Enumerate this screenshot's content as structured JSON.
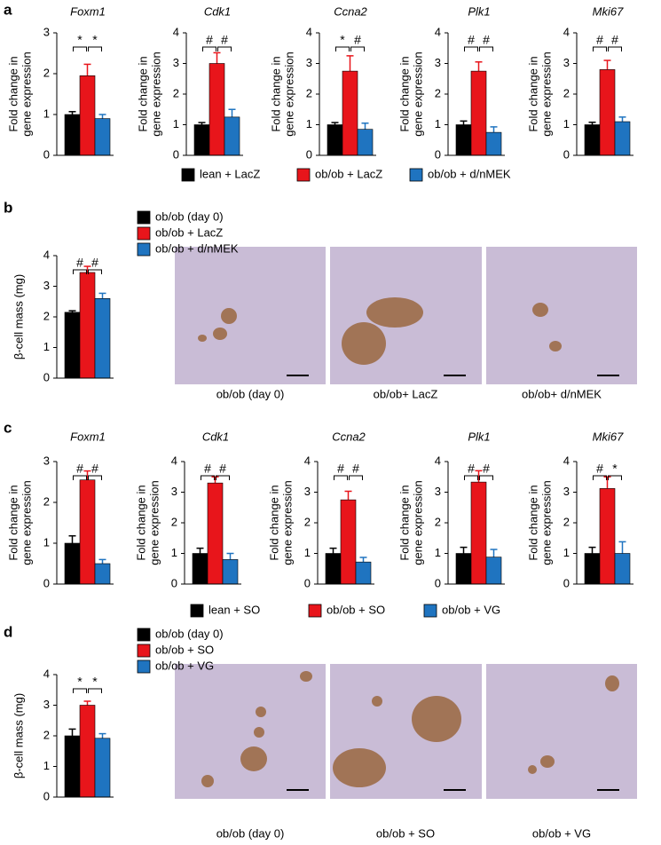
{
  "panel_labels": [
    "a",
    "b",
    "c",
    "d"
  ],
  "legends": [
    {
      "labels": [
        "lean + LacZ",
        "ob/ob + LacZ",
        "ob/ob + d/nMEK"
      ],
      "colors": [
        "#000000",
        "#e8151b",
        "#1f74c0"
      ]
    },
    {
      "labels": [
        "ob/ob (day 0)",
        "ob/ob + LacZ",
        "ob/ob + d/nMEK"
      ],
      "colors": [
        "#000000",
        "#e8151b",
        "#1f74c0"
      ]
    },
    {
      "labels": [
        "lean + SO",
        "ob/ob + SO",
        "ob/ob + VG"
      ],
      "colors": [
        "#000000",
        "#e8151b",
        "#1f74c0"
      ]
    },
    {
      "labels": [
        "ob/ob (day 0)",
        "ob/ob + SO",
        "ob/ob + VG"
      ],
      "colors": [
        "#000000",
        "#e8151b",
        "#1f74c0"
      ]
    }
  ],
  "image_captions": [
    [
      "ob/ob (day 0)",
      "ob/ob+ LacZ",
      "ob/ob+ d/nMEK"
    ],
    [
      "ob/ob (day 0)",
      "ob/ob + SO",
      "ob/ob + VG"
    ]
  ],
  "chart_data": [
    {
      "type": "bar",
      "title": "Foxm1",
      "ylabel": [
        "Fold change in",
        "gene expression"
      ],
      "values": [
        1.0,
        1.95,
        0.9
      ],
      "errors": [
        0.07,
        0.28,
        0.1
      ],
      "colors": [
        "#000000",
        "#e8151b",
        "#1f74c0"
      ],
      "significance": [
        "*",
        "*"
      ],
      "ylim": [
        0,
        3
      ],
      "yticks": [
        0,
        1,
        2,
        3
      ]
    },
    {
      "type": "bar",
      "title": "Cdk1",
      "ylabel": [
        "Fold change in",
        "gene expression"
      ],
      "values": [
        1.0,
        3.0,
        1.25
      ],
      "errors": [
        0.07,
        0.35,
        0.25
      ],
      "colors": [
        "#000000",
        "#e8151b",
        "#1f74c0"
      ],
      "significance": [
        "#",
        "#"
      ],
      "ylim": [
        0,
        4
      ],
      "yticks": [
        0,
        1,
        2,
        3,
        4
      ]
    },
    {
      "type": "bar",
      "title": "Ccna2",
      "ylabel": [
        "Fold change in",
        "gene expression"
      ],
      "values": [
        1.0,
        2.75,
        0.85
      ],
      "errors": [
        0.07,
        0.5,
        0.2
      ],
      "colors": [
        "#000000",
        "#e8151b",
        "#1f74c0"
      ],
      "significance": [
        "*",
        "#"
      ],
      "ylim": [
        0,
        4
      ],
      "yticks": [
        0,
        1,
        2,
        3,
        4
      ]
    },
    {
      "type": "bar",
      "title": "Plk1",
      "ylabel": [
        "Fold change in",
        "gene expression"
      ],
      "values": [
        1.0,
        2.75,
        0.75
      ],
      "errors": [
        0.12,
        0.3,
        0.18
      ],
      "colors": [
        "#000000",
        "#e8151b",
        "#1f74c0"
      ],
      "significance": [
        "#",
        "#"
      ],
      "ylim": [
        0,
        4
      ],
      "yticks": [
        0,
        1,
        2,
        3,
        4
      ]
    },
    {
      "type": "bar",
      "title": "Mki67",
      "ylabel": [
        "Fold change in",
        "gene expression"
      ],
      "values": [
        1.0,
        2.8,
        1.1
      ],
      "errors": [
        0.08,
        0.3,
        0.15
      ],
      "colors": [
        "#000000",
        "#e8151b",
        "#1f74c0"
      ],
      "significance": [
        "#",
        "#"
      ],
      "ylim": [
        0,
        4
      ],
      "yticks": [
        0,
        1,
        2,
        3,
        4
      ]
    },
    {
      "type": "bar",
      "ylabel": "β-cell mass (mg)",
      "values": [
        2.15,
        3.45,
        2.6
      ],
      "errors": [
        0.05,
        0.2,
        0.17
      ],
      "colors": [
        "#000000",
        "#e8151b",
        "#1f74c0"
      ],
      "significance": [
        "#",
        "#"
      ],
      "ylim": [
        0,
        4
      ],
      "yticks": [
        0,
        1,
        2,
        3,
        4
      ]
    },
    {
      "type": "bar",
      "title": "Foxm1",
      "ylabel": [
        "Fold change in",
        "gene expression"
      ],
      "values": [
        1.0,
        2.55,
        0.5
      ],
      "errors": [
        0.18,
        0.22,
        0.1
      ],
      "colors": [
        "#000000",
        "#e8151b",
        "#1f74c0"
      ],
      "significance": [
        "#",
        "#"
      ],
      "ylim": [
        0,
        3
      ],
      "yticks": [
        0,
        1,
        2,
        3
      ]
    },
    {
      "type": "bar",
      "title": "Cdk1",
      "ylabel": [
        "Fold change in",
        "gene expression"
      ],
      "values": [
        1.0,
        3.3,
        0.8
      ],
      "errors": [
        0.17,
        0.2,
        0.2
      ],
      "colors": [
        "#000000",
        "#e8151b",
        "#1f74c0"
      ],
      "significance": [
        "#",
        "#"
      ],
      "ylim": [
        0,
        4
      ],
      "yticks": [
        0,
        1,
        2,
        3,
        4
      ]
    },
    {
      "type": "bar",
      "title": "Ccna2",
      "ylabel": [
        "Fold change in",
        "gene expression"
      ],
      "values": [
        1.0,
        2.75,
        0.72
      ],
      "errors": [
        0.17,
        0.28,
        0.15
      ],
      "colors": [
        "#000000",
        "#e8151b",
        "#1f74c0"
      ],
      "significance": [
        "#",
        "#"
      ],
      "ylim": [
        0,
        4
      ],
      "yticks": [
        0,
        1,
        2,
        3,
        4
      ]
    },
    {
      "type": "bar",
      "title": "Plk1",
      "ylabel": [
        "Fold change in",
        "gene expression"
      ],
      "values": [
        1.0,
        3.33,
        0.88
      ],
      "errors": [
        0.2,
        0.37,
        0.25
      ],
      "colors": [
        "#000000",
        "#e8151b",
        "#1f74c0"
      ],
      "significance": [
        "#",
        "#"
      ],
      "ylim": [
        0,
        4
      ],
      "yticks": [
        0,
        1,
        2,
        3,
        4
      ]
    },
    {
      "type": "bar",
      "title": "Mki67",
      "ylabel": [
        "Fold change in",
        "gene expression"
      ],
      "values": [
        1.0,
        3.12,
        1.0
      ],
      "errors": [
        0.2,
        0.38,
        0.38
      ],
      "colors": [
        "#000000",
        "#e8151b",
        "#1f74c0"
      ],
      "significance": [
        "#",
        "*"
      ],
      "ylim": [
        0,
        4
      ],
      "yticks": [
        0,
        1,
        2,
        3,
        4
      ]
    },
    {
      "type": "bar",
      "ylabel": "β-cell mass (mg)",
      "values": [
        2.0,
        3.0,
        1.92
      ],
      "errors": [
        0.22,
        0.13,
        0.15
      ],
      "colors": [
        "#000000",
        "#e8151b",
        "#1f74c0"
      ],
      "significance": [
        "*",
        "*"
      ],
      "ylim": [
        0,
        4
      ],
      "yticks": [
        0,
        1,
        2,
        3,
        4
      ]
    }
  ]
}
